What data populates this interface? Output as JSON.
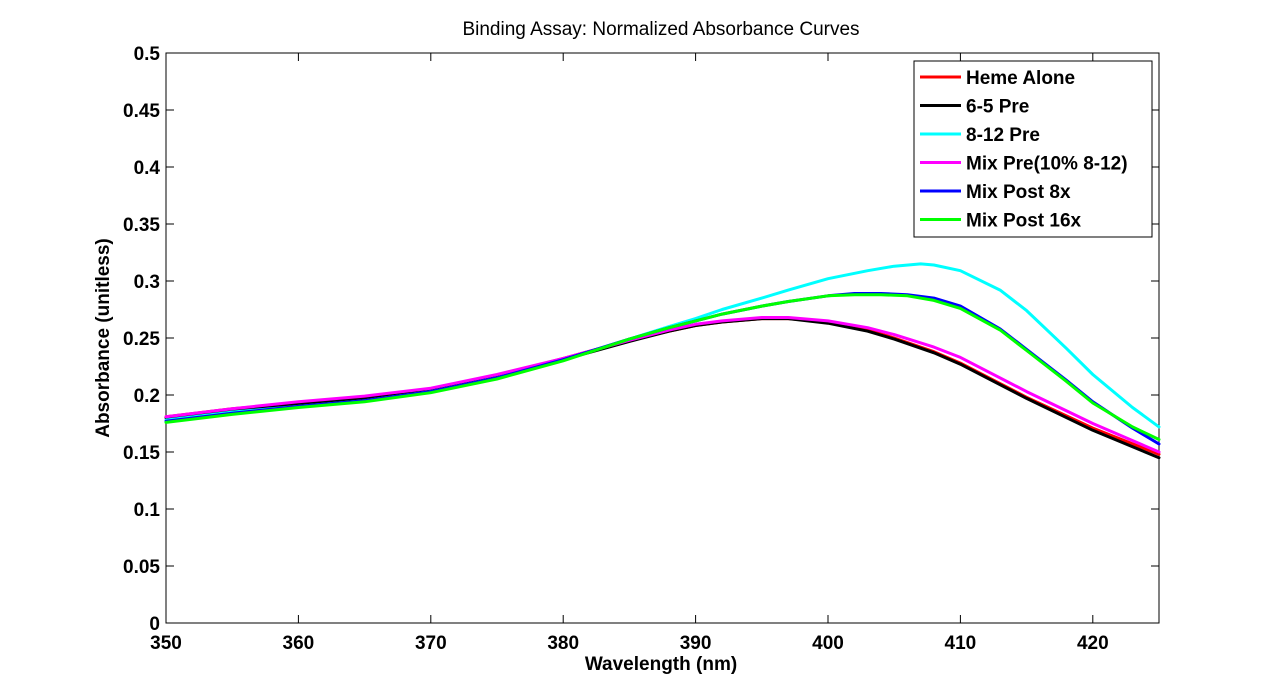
{
  "chart_data": {
    "type": "line",
    "title": "Binding Assay: Normalized Absorbance Curves",
    "xlabel": "Wavelength (nm)",
    "ylabel": "Absorbance (unitless)",
    "xlim": [
      350,
      425
    ],
    "ylim": [
      0,
      0.5
    ],
    "xticks": [
      350,
      360,
      370,
      380,
      390,
      400,
      410,
      420
    ],
    "yticks": [
      0,
      0.05,
      0.1,
      0.15,
      0.2,
      0.25,
      0.3,
      0.35,
      0.4,
      0.45,
      0.5
    ],
    "grid": false,
    "legend_position": "top-right",
    "series": [
      {
        "name": "Heme Alone",
        "color": "#ff0000",
        "x": [
          350,
          355,
          360,
          365,
          370,
          375,
          380,
          385,
          388,
          390,
          392,
          395,
          397,
          400,
          403,
          405,
          408,
          410,
          415,
          420,
          425
        ],
        "y": [
          0.181,
          0.188,
          0.193,
          0.198,
          0.205,
          0.217,
          0.232,
          0.248,
          0.256,
          0.261,
          0.264,
          0.267,
          0.267,
          0.264,
          0.257,
          0.25,
          0.238,
          0.228,
          0.198,
          0.171,
          0.148
        ]
      },
      {
        "name": "6-5 Pre",
        "color": "#000000",
        "x": [
          350,
          355,
          360,
          365,
          370,
          375,
          380,
          385,
          388,
          390,
          392,
          395,
          397,
          400,
          403,
          405,
          408,
          410,
          415,
          420,
          425
        ],
        "y": [
          0.18,
          0.187,
          0.192,
          0.197,
          0.204,
          0.216,
          0.231,
          0.247,
          0.256,
          0.261,
          0.264,
          0.267,
          0.267,
          0.263,
          0.256,
          0.249,
          0.237,
          0.227,
          0.197,
          0.169,
          0.145
        ]
      },
      {
        "name": "8-12 Pre",
        "color": "#00ffff",
        "x": [
          350,
          355,
          360,
          365,
          370,
          375,
          380,
          385,
          388,
          390,
          392,
          395,
          397,
          400,
          403,
          405,
          407,
          408,
          410,
          413,
          415,
          418,
          420,
          423,
          425
        ],
        "y": [
          0.178,
          0.185,
          0.19,
          0.195,
          0.203,
          0.215,
          0.231,
          0.249,
          0.26,
          0.267,
          0.275,
          0.285,
          0.292,
          0.302,
          0.309,
          0.313,
          0.315,
          0.314,
          0.309,
          0.292,
          0.274,
          0.241,
          0.218,
          0.189,
          0.172
        ]
      },
      {
        "name": "Mix Pre(10% 8-12)",
        "color": "#ff00ff",
        "x": [
          350,
          355,
          360,
          365,
          370,
          375,
          380,
          385,
          388,
          390,
          392,
          395,
          397,
          400,
          403,
          405,
          408,
          410,
          415,
          420,
          425
        ],
        "y": [
          0.181,
          0.188,
          0.194,
          0.199,
          0.206,
          0.218,
          0.232,
          0.248,
          0.257,
          0.262,
          0.265,
          0.268,
          0.268,
          0.265,
          0.259,
          0.253,
          0.242,
          0.233,
          0.203,
          0.175,
          0.15
        ]
      },
      {
        "name": "Mix Post 8x",
        "color": "#0000ff",
        "x": [
          350,
          355,
          360,
          365,
          370,
          375,
          380,
          385,
          388,
          390,
          392,
          395,
          397,
          400,
          402,
          404,
          406,
          408,
          410,
          413,
          415,
          418,
          420,
          423,
          425
        ],
        "y": [
          0.177,
          0.184,
          0.19,
          0.195,
          0.203,
          0.215,
          0.231,
          0.249,
          0.259,
          0.265,
          0.271,
          0.278,
          0.282,
          0.287,
          0.289,
          0.289,
          0.288,
          0.285,
          0.278,
          0.258,
          0.24,
          0.213,
          0.194,
          0.171,
          0.157
        ]
      },
      {
        "name": "Mix Post 16x",
        "color": "#00ff00",
        "x": [
          350,
          355,
          360,
          365,
          370,
          375,
          380,
          385,
          388,
          390,
          392,
          395,
          397,
          400,
          402,
          404,
          406,
          408,
          410,
          413,
          415,
          418,
          420,
          423,
          425
        ],
        "y": [
          0.176,
          0.183,
          0.189,
          0.194,
          0.202,
          0.214,
          0.23,
          0.249,
          0.259,
          0.265,
          0.271,
          0.278,
          0.282,
          0.287,
          0.288,
          0.288,
          0.287,
          0.283,
          0.276,
          0.257,
          0.239,
          0.212,
          0.193,
          0.172,
          0.161
        ]
      }
    ]
  }
}
